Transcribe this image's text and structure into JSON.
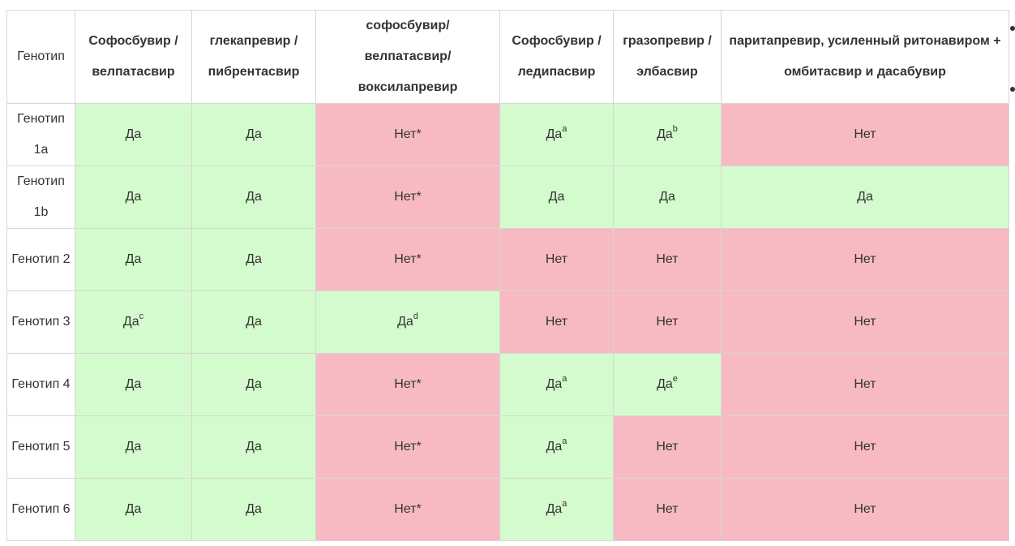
{
  "table": {
    "columns": [
      "Генотип",
      "Софосбувир / велпатасвир",
      "глекапревир / пибрентасвир",
      "софосбувир/ велпатасвир/ воксилапревир",
      "Софосбувир /ледипасвир",
      "гразопревир / элбасвир",
      "паритапревир, усиленный ритонавиром + омбитасвир и дасабувир"
    ],
    "rows": [
      {
        "label": "Генотип 1a",
        "cells": [
          {
            "text": "Да",
            "note": "",
            "status": "yes"
          },
          {
            "text": "Да",
            "note": "",
            "status": "yes"
          },
          {
            "text": "Нет*",
            "note": "",
            "status": "no"
          },
          {
            "text": "Да",
            "note": "a",
            "status": "yes"
          },
          {
            "text": "Да",
            "note": "b",
            "status": "yes"
          },
          {
            "text": "Нет",
            "note": "",
            "status": "no"
          }
        ]
      },
      {
        "label": "Генотип 1b",
        "cells": [
          {
            "text": "Да",
            "note": "",
            "status": "yes"
          },
          {
            "text": "Да",
            "note": "",
            "status": "yes"
          },
          {
            "text": "Нет*",
            "note": "",
            "status": "no"
          },
          {
            "text": "Да",
            "note": "",
            "status": "yes"
          },
          {
            "text": "Да",
            "note": "",
            "status": "yes"
          },
          {
            "text": "Да",
            "note": "",
            "status": "yes"
          }
        ]
      },
      {
        "label": "Генотип 2",
        "cells": [
          {
            "text": "Да",
            "note": "",
            "status": "yes"
          },
          {
            "text": "Да",
            "note": "",
            "status": "yes"
          },
          {
            "text": "Нет*",
            "note": "",
            "status": "no"
          },
          {
            "text": "Нет",
            "note": "",
            "status": "no"
          },
          {
            "text": "Нет",
            "note": "",
            "status": "no"
          },
          {
            "text": "Нет",
            "note": "",
            "status": "no"
          }
        ]
      },
      {
        "label": "Генотип 3",
        "cells": [
          {
            "text": "Да",
            "note": "c",
            "status": "yes"
          },
          {
            "text": "Да",
            "note": "",
            "status": "yes"
          },
          {
            "text": "Да",
            "note": "d",
            "status": "yes"
          },
          {
            "text": "Нет",
            "note": "",
            "status": "no"
          },
          {
            "text": "Нет",
            "note": "",
            "status": "no"
          },
          {
            "text": "Нет",
            "note": "",
            "status": "no"
          }
        ]
      },
      {
        "label": "Генотип 4",
        "cells": [
          {
            "text": "Да",
            "note": "",
            "status": "yes"
          },
          {
            "text": "Да",
            "note": "",
            "status": "yes"
          },
          {
            "text": "Нет*",
            "note": "",
            "status": "no"
          },
          {
            "text": "Да",
            "note": "a",
            "status": "yes"
          },
          {
            "text": "Да",
            "note": "e",
            "status": "yes"
          },
          {
            "text": "Нет",
            "note": "",
            "status": "no"
          }
        ]
      },
      {
        "label": "Генотип 5",
        "cells": [
          {
            "text": "Да",
            "note": "",
            "status": "yes"
          },
          {
            "text": "Да",
            "note": "",
            "status": "yes"
          },
          {
            "text": "Нет*",
            "note": "",
            "status": "no"
          },
          {
            "text": "Да",
            "note": "a",
            "status": "yes"
          },
          {
            "text": "Нет",
            "note": "",
            "status": "no"
          },
          {
            "text": "Нет",
            "note": "",
            "status": "no"
          }
        ]
      },
      {
        "label": "Генотип 6",
        "cells": [
          {
            "text": "Да",
            "note": "",
            "status": "yes"
          },
          {
            "text": "Да",
            "note": "",
            "status": "yes"
          },
          {
            "text": "Нет*",
            "note": "",
            "status": "no"
          },
          {
            "text": "Да",
            "note": "a",
            "status": "yes"
          },
          {
            "text": "Нет",
            "note": "",
            "status": "no"
          },
          {
            "text": "Нет",
            "note": "",
            "status": "no"
          }
        ]
      }
    ]
  },
  "colors": {
    "yes": "#d4fbcd",
    "no": "#f7bac2",
    "border": "#d6d6d6",
    "text": "#333333"
  }
}
